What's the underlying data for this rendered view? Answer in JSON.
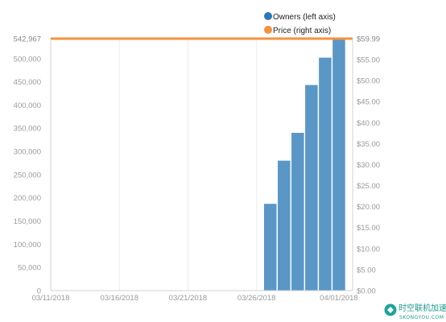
{
  "chart_data": {
    "type": "bar+line",
    "title": "",
    "legend": {
      "position": "top-right",
      "entries": [
        {
          "label": "Owners (left axis)",
          "color": "#2f78b4"
        },
        {
          "label": "Price (right axis)",
          "color": "#f5923e"
        }
      ]
    },
    "x_axis": {
      "type": "date",
      "ticks": [
        "03/11/2018",
        "03/16/2018",
        "03/21/2018",
        "03/26/2018",
        "04/01/2018"
      ],
      "range": [
        "2018-03-11",
        "2018-04-02"
      ]
    },
    "y_left": {
      "label": "",
      "ylim": [
        0,
        542967
      ],
      "ticks": [
        0,
        50000,
        100000,
        150000,
        200000,
        250000,
        300000,
        350000,
        400000,
        450000,
        500000
      ],
      "tick_labels": [
        "0",
        "50,000",
        "100,000",
        "150,000",
        "200,000",
        "250,000",
        "300,000",
        "350,000",
        "400,000",
        "450,000",
        "500,000"
      ],
      "max_label": "542,967"
    },
    "y_right": {
      "label": "",
      "ylim": [
        0,
        59.99
      ],
      "ticks": [
        0,
        5,
        10,
        15,
        20,
        25,
        30,
        35,
        40,
        45,
        50,
        55
      ],
      "tick_labels": [
        "$0.00",
        "$5.00",
        "$10.00",
        "$15.00",
        "$20.00",
        "$25.00",
        "$30.00",
        "$35.00",
        "$40.00",
        "$45.00",
        "$50.00",
        "$55.00"
      ],
      "max_label": "$59.99"
    },
    "series": [
      {
        "name": "Owners (left axis)",
        "type": "bar",
        "axis": "left",
        "color": "#5a97c7",
        "points": [
          {
            "x": "2018-03-27",
            "y": 187000
          },
          {
            "x": "2018-03-28",
            "y": 280000
          },
          {
            "x": "2018-03-29",
            "y": 340000
          },
          {
            "x": "2018-03-30",
            "y": 443000
          },
          {
            "x": "2018-03-31",
            "y": 502000
          },
          {
            "x": "2018-04-01",
            "y": 542967
          }
        ]
      },
      {
        "name": "Price (right axis)",
        "type": "line",
        "axis": "right",
        "color": "#f5923e",
        "points": [
          {
            "x": "2018-03-11",
            "y": 59.99
          },
          {
            "x": "2018-04-01",
            "y": 59.99
          }
        ]
      }
    ],
    "grid": "vertical"
  },
  "watermark": {
    "name": "时空联机加速器",
    "url": "SKONGYOU.COM"
  }
}
